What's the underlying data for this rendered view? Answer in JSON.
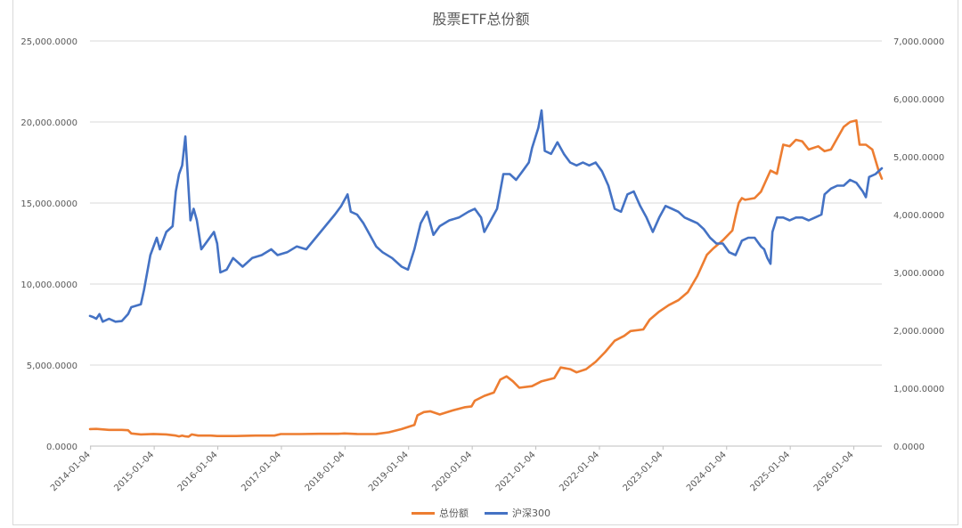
{
  "chart_data": {
    "type": "line",
    "title": "股票ETF总份额",
    "xlabel": "",
    "ylabel_left": "",
    "ylabel_right": "",
    "x_ticks": [
      "2014-01-04",
      "2015-01-04",
      "2016-01-04",
      "2017-01-04",
      "2018-01-04",
      "2019-01-04",
      "2020-01-04",
      "2021-01-04",
      "2022-01-04",
      "2023-01-04",
      "2024-01-04",
      "2025-01-04",
      "2026-01-04"
    ],
    "x_range": [
      2014.0,
      2026.45
    ],
    "y_left_ticks": [
      "0.0000",
      "5,000.0000",
      "10,000.0000",
      "15,000.0000",
      "20,000.0000",
      "25,000.0000"
    ],
    "y_left_range": [
      0,
      25000
    ],
    "y_right_ticks": [
      "0.0000",
      "1,000.0000",
      "2,000.0000",
      "3,000.0000",
      "4,000.0000",
      "5,000.0000",
      "6,000.0000",
      "7,000.0000"
    ],
    "y_right_range": [
      0,
      7000
    ],
    "grid": true,
    "legend_position": "bottom",
    "series": [
      {
        "name": "总份额",
        "axis": "left",
        "color": "#ed7d31",
        "points": [
          [
            2014.0,
            1050
          ],
          [
            2014.1,
            1060
          ],
          [
            2014.3,
            1000
          ],
          [
            2014.5,
            1000
          ],
          [
            2014.6,
            980
          ],
          [
            2014.65,
            780
          ],
          [
            2014.8,
            720
          ],
          [
            2015.0,
            750
          ],
          [
            2015.2,
            720
          ],
          [
            2015.35,
            650
          ],
          [
            2015.4,
            600
          ],
          [
            2015.45,
            650
          ],
          [
            2015.5,
            600
          ],
          [
            2015.55,
            580
          ],
          [
            2015.6,
            720
          ],
          [
            2015.7,
            650
          ],
          [
            2015.9,
            650
          ],
          [
            2016.0,
            620
          ],
          [
            2016.3,
            620
          ],
          [
            2016.6,
            650
          ],
          [
            2016.9,
            650
          ],
          [
            2017.0,
            740
          ],
          [
            2017.3,
            740
          ],
          [
            2017.6,
            760
          ],
          [
            2017.9,
            760
          ],
          [
            2018.0,
            780
          ],
          [
            2018.2,
            750
          ],
          [
            2018.4,
            740
          ],
          [
            2018.5,
            750
          ],
          [
            2018.7,
            850
          ],
          [
            2018.9,
            1050
          ],
          [
            2019.1,
            1300
          ],
          [
            2019.15,
            1900
          ],
          [
            2019.25,
            2100
          ],
          [
            2019.35,
            2150
          ],
          [
            2019.5,
            1950
          ],
          [
            2019.7,
            2200
          ],
          [
            2019.9,
            2400
          ],
          [
            2020.0,
            2450
          ],
          [
            2020.05,
            2800
          ],
          [
            2020.2,
            3100
          ],
          [
            2020.35,
            3300
          ],
          [
            2020.45,
            4100
          ],
          [
            2020.55,
            4300
          ],
          [
            2020.65,
            4000
          ],
          [
            2020.75,
            3600
          ],
          [
            2020.95,
            3700
          ],
          [
            2021.1,
            4000
          ],
          [
            2021.3,
            4200
          ],
          [
            2021.4,
            4850
          ],
          [
            2021.55,
            4750
          ],
          [
            2021.65,
            4550
          ],
          [
            2021.8,
            4750
          ],
          [
            2021.95,
            5200
          ],
          [
            2022.1,
            5800
          ],
          [
            2022.25,
            6500
          ],
          [
            2022.4,
            6800
          ],
          [
            2022.5,
            7100
          ],
          [
            2022.7,
            7200
          ],
          [
            2022.8,
            7800
          ],
          [
            2022.95,
            8300
          ],
          [
            2023.1,
            8700
          ],
          [
            2023.25,
            9000
          ],
          [
            2023.4,
            9500
          ],
          [
            2023.55,
            10500
          ],
          [
            2023.7,
            11800
          ],
          [
            2023.8,
            12200
          ],
          [
            2023.95,
            12700
          ],
          [
            2024.1,
            13300
          ],
          [
            2024.15,
            14200
          ],
          [
            2024.2,
            15000
          ],
          [
            2024.25,
            15300
          ],
          [
            2024.3,
            15200
          ],
          [
            2024.45,
            15300
          ],
          [
            2024.55,
            15700
          ],
          [
            2024.7,
            17000
          ],
          [
            2024.8,
            16800
          ],
          [
            2024.9,
            18600
          ],
          [
            2025.0,
            18500
          ],
          [
            2025.1,
            18900
          ],
          [
            2025.2,
            18800
          ],
          [
            2025.3,
            18300
          ],
          [
            2025.45,
            18500
          ],
          [
            2025.55,
            18200
          ],
          [
            2025.65,
            18300
          ],
          [
            2025.75,
            19000
          ],
          [
            2025.85,
            19700
          ],
          [
            2025.95,
            20000
          ],
          [
            2026.05,
            20100
          ],
          [
            2026.1,
            18600
          ],
          [
            2026.2,
            18600
          ],
          [
            2026.3,
            18300
          ],
          [
            2026.4,
            17000
          ],
          [
            2026.45,
            16500
          ]
        ]
      },
      {
        "name": "沪深300",
        "axis": "right",
        "color": "#4472c4",
        "points": [
          [
            2014.0,
            2250
          ],
          [
            2014.05,
            2230
          ],
          [
            2014.1,
            2200
          ],
          [
            2014.15,
            2280
          ],
          [
            2014.2,
            2150
          ],
          [
            2014.3,
            2200
          ],
          [
            2014.4,
            2150
          ],
          [
            2014.5,
            2160
          ],
          [
            2014.6,
            2280
          ],
          [
            2014.65,
            2400
          ],
          [
            2014.8,
            2450
          ],
          [
            2014.85,
            2700
          ],
          [
            2014.95,
            3300
          ],
          [
            2015.05,
            3600
          ],
          [
            2015.1,
            3400
          ],
          [
            2015.2,
            3700
          ],
          [
            2015.3,
            3800
          ],
          [
            2015.35,
            4400
          ],
          [
            2015.4,
            4700
          ],
          [
            2015.45,
            4850
          ],
          [
            2015.5,
            5350
          ],
          [
            2015.53,
            4800
          ],
          [
            2015.58,
            3900
          ],
          [
            2015.63,
            4100
          ],
          [
            2015.68,
            3900
          ],
          [
            2015.75,
            3400
          ],
          [
            2015.85,
            3550
          ],
          [
            2015.95,
            3700
          ],
          [
            2016.0,
            3500
          ],
          [
            2016.05,
            3000
          ],
          [
            2016.15,
            3050
          ],
          [
            2016.25,
            3250
          ],
          [
            2016.4,
            3100
          ],
          [
            2016.55,
            3250
          ],
          [
            2016.7,
            3300
          ],
          [
            2016.85,
            3400
          ],
          [
            2016.95,
            3300
          ],
          [
            2017.1,
            3350
          ],
          [
            2017.25,
            3450
          ],
          [
            2017.4,
            3400
          ],
          [
            2017.55,
            3600
          ],
          [
            2017.7,
            3800
          ],
          [
            2017.85,
            4000
          ],
          [
            2017.95,
            4150
          ],
          [
            2018.05,
            4350
          ],
          [
            2018.1,
            4050
          ],
          [
            2018.2,
            4000
          ],
          [
            2018.3,
            3850
          ],
          [
            2018.4,
            3650
          ],
          [
            2018.5,
            3450
          ],
          [
            2018.6,
            3350
          ],
          [
            2018.75,
            3250
          ],
          [
            2018.9,
            3100
          ],
          [
            2019.0,
            3050
          ],
          [
            2019.1,
            3400
          ],
          [
            2019.2,
            3850
          ],
          [
            2019.3,
            4050
          ],
          [
            2019.4,
            3650
          ],
          [
            2019.5,
            3800
          ],
          [
            2019.65,
            3900
          ],
          [
            2019.8,
            3950
          ],
          [
            2019.95,
            4050
          ],
          [
            2020.05,
            4100
          ],
          [
            2020.15,
            3950
          ],
          [
            2020.2,
            3700
          ],
          [
            2020.3,
            3900
          ],
          [
            2020.4,
            4100
          ],
          [
            2020.5,
            4700
          ],
          [
            2020.6,
            4700
          ],
          [
            2020.7,
            4600
          ],
          [
            2020.8,
            4750
          ],
          [
            2020.9,
            4900
          ],
          [
            2020.95,
            5150
          ],
          [
            2021.05,
            5500
          ],
          [
            2021.1,
            5800
          ],
          [
            2021.15,
            5100
          ],
          [
            2021.25,
            5050
          ],
          [
            2021.35,
            5250
          ],
          [
            2021.45,
            5050
          ],
          [
            2021.55,
            4900
          ],
          [
            2021.65,
            4850
          ],
          [
            2021.75,
            4900
          ],
          [
            2021.85,
            4850
          ],
          [
            2021.95,
            4900
          ],
          [
            2022.05,
            4750
          ],
          [
            2022.15,
            4500
          ],
          [
            2022.25,
            4100
          ],
          [
            2022.35,
            4050
          ],
          [
            2022.45,
            4350
          ],
          [
            2022.55,
            4400
          ],
          [
            2022.65,
            4150
          ],
          [
            2022.75,
            3950
          ],
          [
            2022.85,
            3700
          ],
          [
            2022.95,
            3950
          ],
          [
            2023.05,
            4150
          ],
          [
            2023.15,
            4100
          ],
          [
            2023.25,
            4050
          ],
          [
            2023.35,
            3950
          ],
          [
            2023.45,
            3900
          ],
          [
            2023.55,
            3850
          ],
          [
            2023.65,
            3750
          ],
          [
            2023.75,
            3600
          ],
          [
            2023.85,
            3500
          ],
          [
            2023.95,
            3500
          ],
          [
            2024.05,
            3350
          ],
          [
            2024.15,
            3300
          ],
          [
            2024.25,
            3550
          ],
          [
            2024.35,
            3600
          ],
          [
            2024.45,
            3600
          ],
          [
            2024.55,
            3450
          ],
          [
            2024.6,
            3400
          ],
          [
            2024.65,
            3250
          ],
          [
            2024.7,
            3150
          ],
          [
            2024.73,
            3700
          ],
          [
            2024.8,
            3950
          ],
          [
            2024.9,
            3950
          ],
          [
            2025.0,
            3900
          ],
          [
            2025.1,
            3950
          ],
          [
            2025.2,
            3950
          ],
          [
            2025.3,
            3900
          ],
          [
            2025.4,
            3950
          ],
          [
            2025.5,
            4000
          ],
          [
            2025.55,
            4350
          ],
          [
            2025.65,
            4450
          ],
          [
            2025.75,
            4500
          ],
          [
            2025.85,
            4500
          ],
          [
            2025.95,
            4600
          ],
          [
            2026.05,
            4550
          ],
          [
            2026.15,
            4400
          ],
          [
            2026.2,
            4300
          ],
          [
            2026.25,
            4650
          ],
          [
            2026.35,
            4700
          ],
          [
            2026.45,
            4800
          ]
        ]
      }
    ]
  }
}
